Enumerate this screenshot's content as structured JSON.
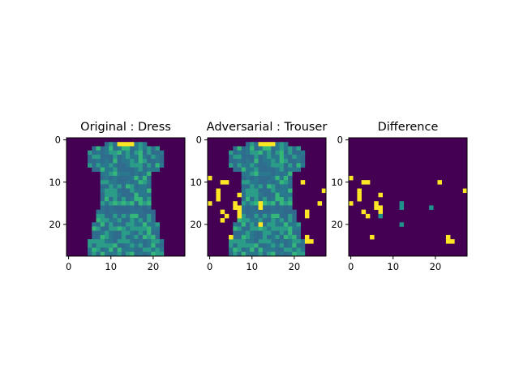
{
  "chart_data": [
    {
      "type": "heatmap",
      "title": "Original : Dress",
      "xlabel": "",
      "ylabel": "",
      "grid_size": 28,
      "xlim": [
        -0.5,
        27.5
      ],
      "ylim": [
        27.5,
        -0.5
      ],
      "x_ticks": [
        "0",
        "10",
        "20"
      ],
      "y_ticks": [
        "0",
        "10",
        "20"
      ],
      "colormap": "viridis",
      "grid": false,
      "bright_pixels": []
    },
    {
      "type": "heatmap",
      "title": "Adversarial : Trouser",
      "xlabel": "",
      "ylabel": "",
      "grid_size": 28,
      "xlim": [
        -0.5,
        27.5
      ],
      "ylim": [
        27.5,
        -0.5
      ],
      "x_ticks": [
        "0",
        "10",
        "20"
      ],
      "y_ticks": [
        "0",
        "10",
        "20"
      ],
      "colormap": "viridis",
      "grid": false,
      "bright_pixels": [
        [
          0,
          9
        ],
        [
          3,
          10
        ],
        [
          4,
          10
        ],
        [
          2,
          12
        ],
        [
          2,
          13
        ],
        [
          7,
          13
        ],
        [
          2,
          14
        ],
        [
          0,
          15
        ],
        [
          6,
          15
        ],
        [
          6,
          16
        ],
        [
          7,
          16
        ],
        [
          12,
          15
        ],
        [
          12,
          16
        ],
        [
          22,
          10
        ],
        [
          27,
          12
        ],
        [
          26,
          15
        ],
        [
          3,
          17
        ],
        [
          7,
          17
        ],
        [
          7,
          18
        ],
        [
          4,
          18
        ],
        [
          3,
          19
        ],
        [
          12,
          20
        ],
        [
          23,
          17
        ],
        [
          23,
          18
        ],
        [
          5,
          23
        ],
        [
          23,
          23
        ],
        [
          23,
          24
        ],
        [
          24,
          24
        ]
      ]
    },
    {
      "type": "heatmap",
      "title": "Difference",
      "xlabel": "",
      "ylabel": "",
      "grid_size": 28,
      "xlim": [
        -0.5,
        27.5
      ],
      "ylim": [
        27.5,
        -0.5
      ],
      "x_ticks": [
        "0",
        "10",
        "20"
      ],
      "y_ticks": [
        "0",
        "10",
        "20"
      ],
      "colormap": "viridis",
      "grid": false,
      "bright_pixels": [
        [
          0,
          9
        ],
        [
          3,
          10
        ],
        [
          4,
          10
        ],
        [
          2,
          12
        ],
        [
          2,
          13
        ],
        [
          7,
          13
        ],
        [
          2,
          14
        ],
        [
          0,
          15
        ],
        [
          6,
          15
        ],
        [
          6,
          16
        ],
        [
          7,
          16
        ],
        [
          21,
          10
        ],
        [
          27,
          12
        ],
        [
          3,
          17
        ],
        [
          7,
          17
        ],
        [
          4,
          18
        ],
        [
          5,
          23
        ],
        [
          23,
          23
        ],
        [
          23,
          24
        ],
        [
          24,
          24
        ]
      ],
      "mid_pixels": [
        [
          12,
          15
        ],
        [
          12,
          16
        ],
        [
          19,
          16
        ],
        [
          7,
          18
        ],
        [
          12,
          20
        ]
      ]
    }
  ],
  "colors": {
    "background_cell": "#440154",
    "bright": "#fde725",
    "mid": "#21918c",
    "dress_base": "#2a788e",
    "dress_light": "#35b779",
    "frame": "#000000"
  }
}
